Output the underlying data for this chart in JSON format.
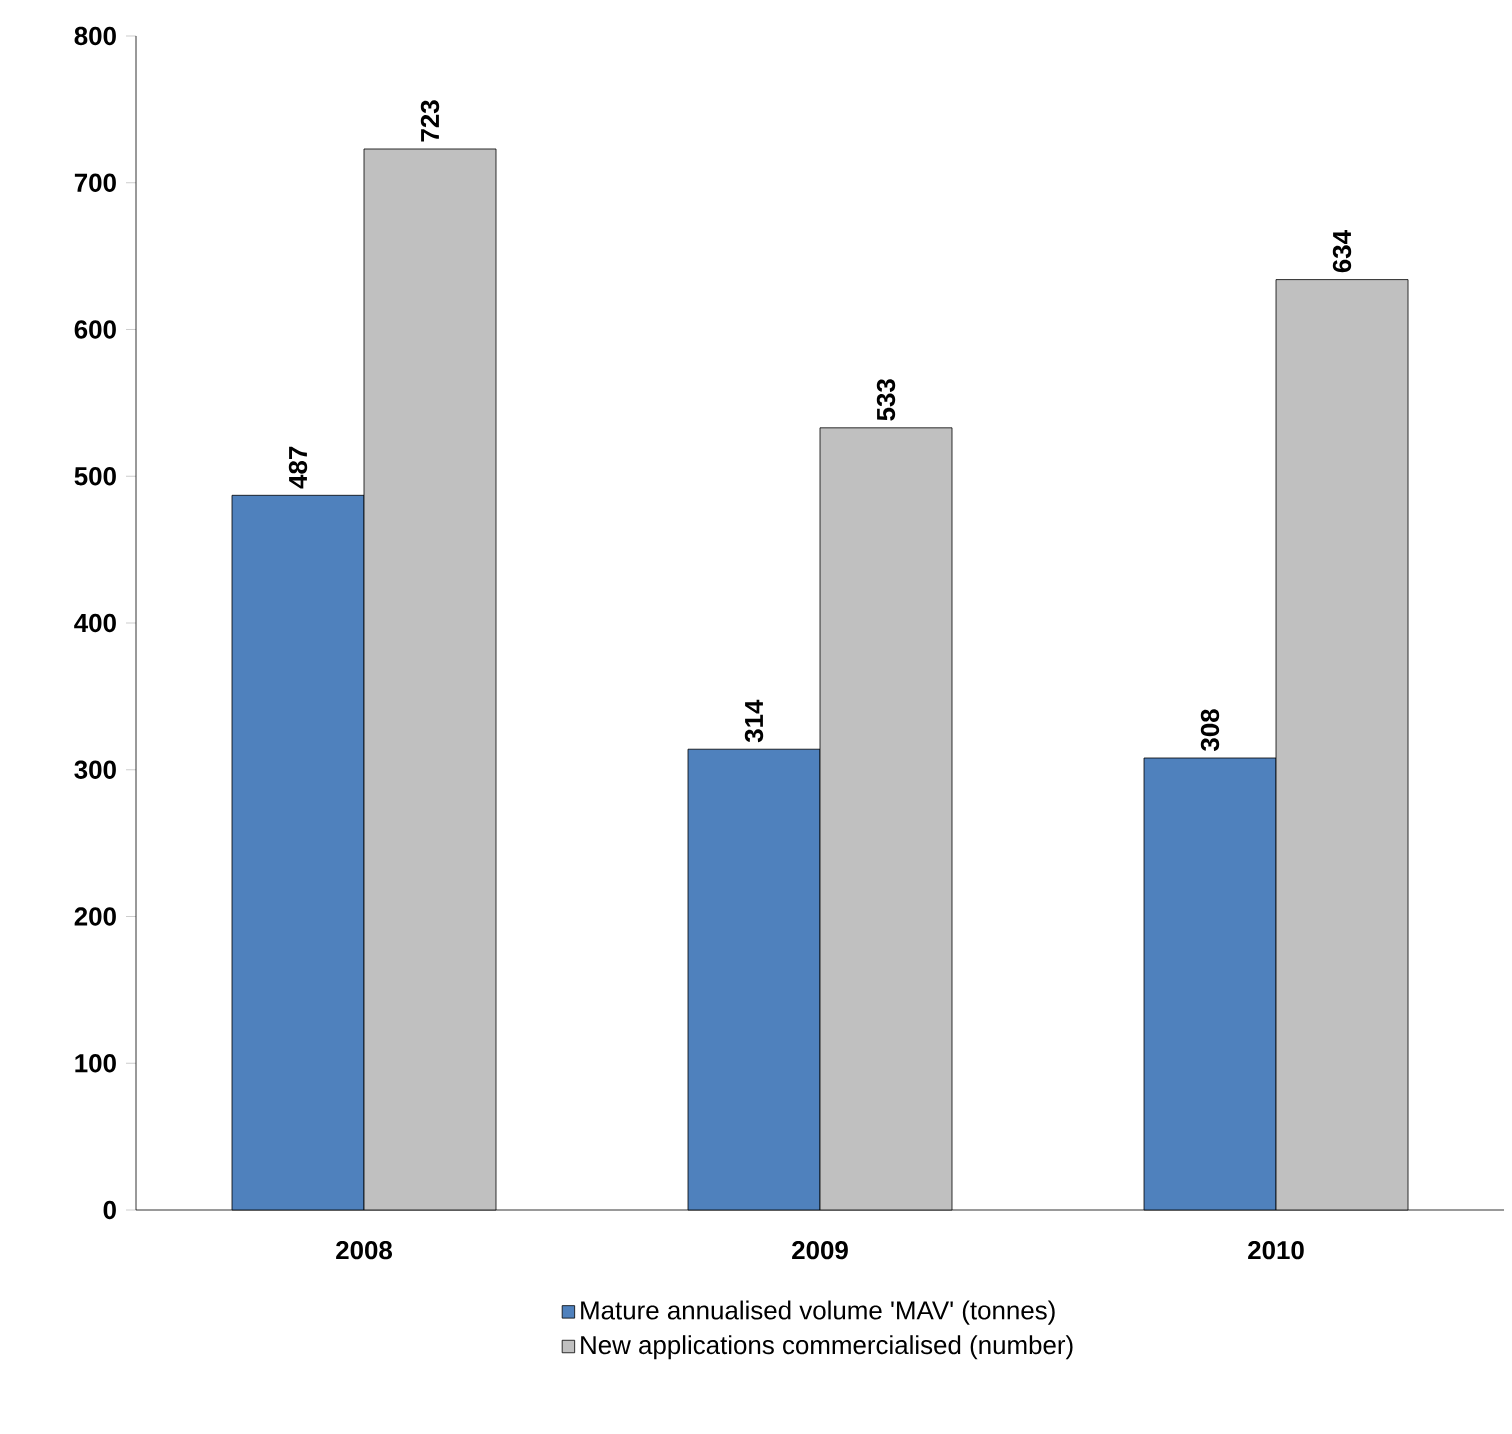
{
  "chart_data": {
    "type": "bar",
    "categories": [
      "2008",
      "2009",
      "2010"
    ],
    "series": [
      {
        "name": "Mature annualised volume 'MAV' (tonnes)",
        "color": "#4f81bd",
        "values": [
          487,
          314,
          308
        ]
      },
      {
        "name": "New applications commercialised (number)",
        "color": "#c0c0c0",
        "values": [
          723,
          533,
          634
        ]
      }
    ],
    "ylim": [
      0,
      800
    ],
    "yticks": [
      0,
      100,
      200,
      300,
      400,
      500,
      600,
      700,
      800
    ],
    "data_labels": true,
    "legend": "bottom",
    "grid": false
  }
}
